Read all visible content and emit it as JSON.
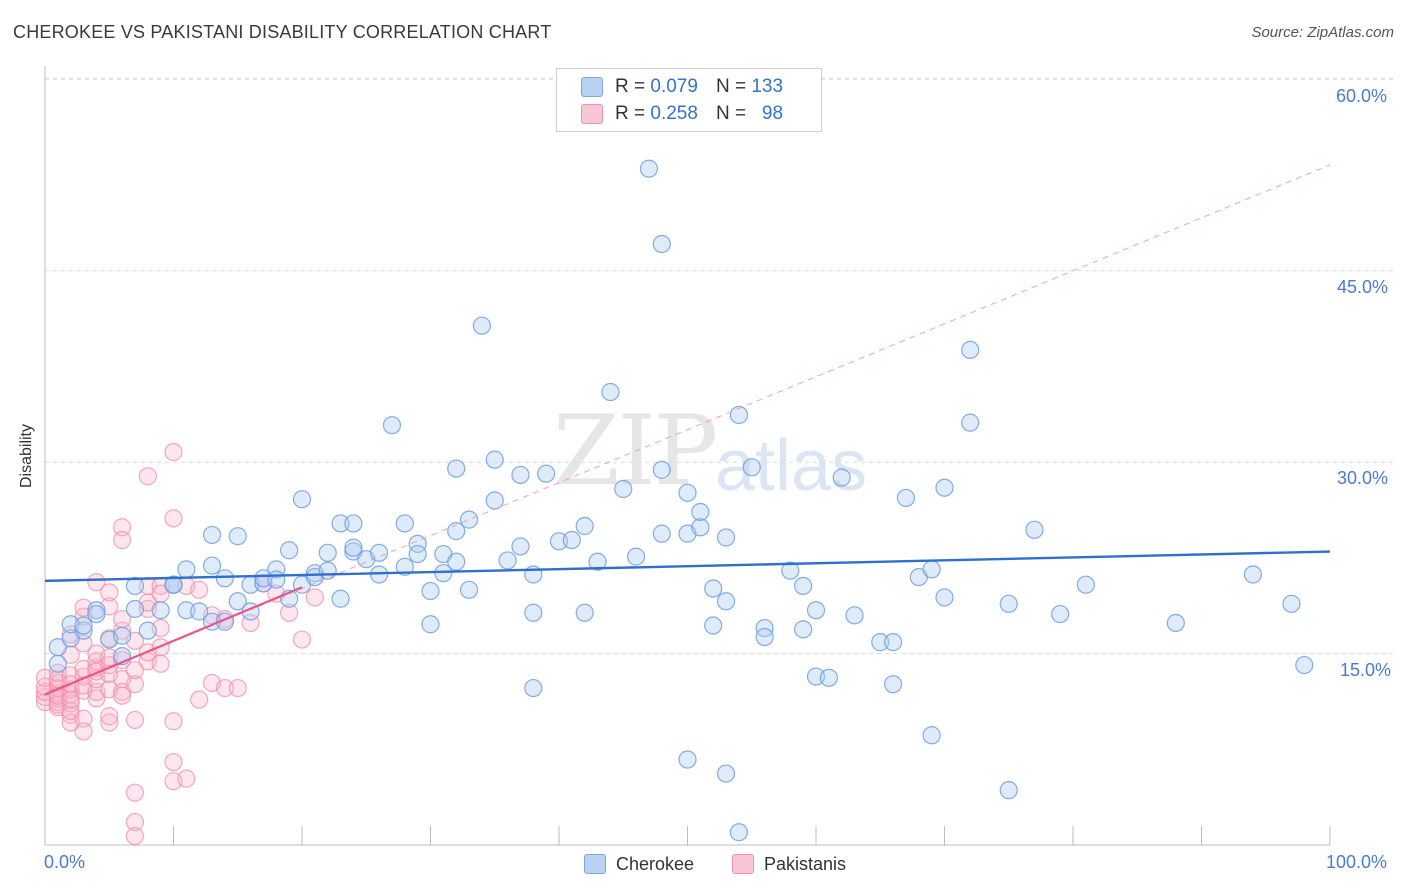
{
  "title": "CHEROKEE VS PAKISTANI DISABILITY CORRELATION CHART",
  "source": "Source: ZipAtlas.com",
  "watermark": {
    "zip": "ZIP",
    "atlas": "atlas"
  },
  "legend": {
    "row1": {
      "r_label": "R =",
      "r_value": "0.079",
      "n_label": "N =",
      "n_value": "133"
    },
    "row2": {
      "r_label": "R =",
      "r_value": "0.258",
      "n_label": "N =",
      "n_value": "98"
    }
  },
  "chart_data": {
    "type": "scatter",
    "title": "CHEROKEE VS PAKISTANI DISABILITY CORRELATION CHART",
    "xlabel": "",
    "ylabel": "Disability",
    "xlim": [
      0,
      100
    ],
    "ylim": [
      0,
      62
    ],
    "x_tick_labels": [
      "0.0%",
      "100.0%"
    ],
    "y_tick_labels": [
      "15.0%",
      "30.0%",
      "45.0%",
      "60.0%"
    ],
    "y_ticks": [
      15,
      30,
      45,
      60
    ],
    "colors": {
      "cherokee": "#6c9fe3",
      "pakistanis": "#f08cab",
      "cherokee_line": "#2f6fcf",
      "pakistanis_line": "#e8568a"
    },
    "series": [
      {
        "name": "Cherokee",
        "r": 0.079,
        "n": 133,
        "trend": {
          "x": [
            0,
            100
          ],
          "y": [
            20.7,
            23.0
          ]
        },
        "points": [
          [
            1,
            14.2
          ],
          [
            1,
            15.5
          ],
          [
            2,
            16.2
          ],
          [
            2,
            17.3
          ],
          [
            3,
            16.8
          ],
          [
            3,
            17.2
          ],
          [
            4,
            18.4
          ],
          [
            4,
            18.1
          ],
          [
            5,
            16.1
          ],
          [
            6,
            16.4
          ],
          [
            6,
            14.8
          ],
          [
            7,
            18.5
          ],
          [
            7,
            20.3
          ],
          [
            8,
            16.8
          ],
          [
            9,
            18.4
          ],
          [
            10,
            20.4
          ],
          [
            10,
            20.4
          ],
          [
            10,
            20.4
          ],
          [
            11,
            21.6
          ],
          [
            11,
            18.4
          ],
          [
            12,
            18.3
          ],
          [
            13,
            21.9
          ],
          [
            13,
            17.5
          ],
          [
            14,
            20.9
          ],
          [
            14,
            17.5
          ],
          [
            13,
            24.3
          ],
          [
            15,
            19.1
          ],
          [
            15,
            24.2
          ],
          [
            16,
            18.3
          ],
          [
            16,
            20.4
          ],
          [
            17,
            20.5
          ],
          [
            17,
            20.9
          ],
          [
            18,
            21.6
          ],
          [
            18,
            20.8
          ],
          [
            19,
            19.3
          ],
          [
            19,
            23.1
          ],
          [
            20,
            27.1
          ],
          [
            20,
            20.4
          ],
          [
            21,
            21.3
          ],
          [
            21,
            21.0
          ],
          [
            22,
            21.5
          ],
          [
            22,
            22.9
          ],
          [
            23,
            25.2
          ],
          [
            23,
            19.3
          ],
          [
            24,
            25.2
          ],
          [
            24,
            23.0
          ],
          [
            24,
            23.3
          ],
          [
            25,
            22.4
          ],
          [
            26,
            21.2
          ],
          [
            26,
            22.9
          ],
          [
            27,
            32.9
          ],
          [
            28,
            25.2
          ],
          [
            28,
            21.8
          ],
          [
            29,
            23.6
          ],
          [
            29,
            22.8
          ],
          [
            30,
            19.9
          ],
          [
            30,
            17.3
          ],
          [
            31,
            22.8
          ],
          [
            31,
            21.3
          ],
          [
            32,
            22.2
          ],
          [
            32,
            29.5
          ],
          [
            32,
            24.6
          ],
          [
            33,
            25.5
          ],
          [
            33,
            20.0
          ],
          [
            34,
            40.7
          ],
          [
            35,
            30.2
          ],
          [
            35,
            27.0
          ],
          [
            36,
            22.3
          ],
          [
            37,
            29.0
          ],
          [
            37,
            23.4
          ],
          [
            38,
            18.2
          ],
          [
            38,
            12.3
          ],
          [
            38,
            21.2
          ],
          [
            39,
            29.1
          ],
          [
            40,
            23.8
          ],
          [
            41,
            23.9
          ],
          [
            42,
            25.0
          ],
          [
            42,
            18.2
          ],
          [
            43,
            22.2
          ],
          [
            44,
            35.5
          ],
          [
            45,
            27.9
          ],
          [
            46,
            22.6
          ],
          [
            47,
            53.0
          ],
          [
            48,
            29.4
          ],
          [
            48,
            24.4
          ],
          [
            48,
            47.1
          ],
          [
            50,
            24.4
          ],
          [
            50,
            6.7
          ],
          [
            50,
            27.6
          ],
          [
            51,
            24.9
          ],
          [
            51,
            26.1
          ],
          [
            52,
            20.1
          ],
          [
            52,
            17.2
          ],
          [
            53,
            24.1
          ],
          [
            53,
            5.6
          ],
          [
            53,
            19.1
          ],
          [
            54,
            1.0
          ],
          [
            54,
            33.7
          ],
          [
            55,
            29.6
          ],
          [
            56,
            17.0
          ],
          [
            56,
            16.3
          ],
          [
            58,
            21.5
          ],
          [
            59,
            20.3
          ],
          [
            59,
            16.9
          ],
          [
            60,
            18.4
          ],
          [
            60,
            13.2
          ],
          [
            61,
            13.1
          ],
          [
            62,
            28.8
          ],
          [
            63,
            18.0
          ],
          [
            65,
            15.9
          ],
          [
            66,
            12.6
          ],
          [
            66,
            15.9
          ],
          [
            67,
            27.2
          ],
          [
            68,
            21.0
          ],
          [
            69,
            21.6
          ],
          [
            69,
            8.6
          ],
          [
            70,
            28.0
          ],
          [
            70,
            19.4
          ],
          [
            72,
            33.1
          ],
          [
            72,
            38.8
          ],
          [
            75,
            4.3
          ],
          [
            75,
            18.9
          ],
          [
            77,
            24.7
          ],
          [
            79,
            18.1
          ],
          [
            81,
            20.4
          ],
          [
            88,
            17.4
          ],
          [
            94,
            21.2
          ],
          [
            97,
            18.9
          ],
          [
            98,
            14.1
          ]
        ]
      },
      {
        "name": "Pakistanis",
        "r": 0.258,
        "n": 98,
        "trend": {
          "x": [
            0,
            20
          ],
          "y": [
            11.8,
            20.2
          ]
        },
        "trend_ext": {
          "x": [
            0,
            100
          ],
          "y": [
            11.8,
            53.3
          ]
        },
        "points": [
          [
            0,
            11.2
          ],
          [
            0,
            11.6
          ],
          [
            0,
            12.0
          ],
          [
            0,
            12.4
          ],
          [
            0,
            13.1
          ],
          [
            1,
            10.8
          ],
          [
            1,
            11.2
          ],
          [
            1,
            11.5
          ],
          [
            1,
            11.9
          ],
          [
            1,
            12.3
          ],
          [
            1,
            12.7
          ],
          [
            1,
            13.0
          ],
          [
            1,
            13.5
          ],
          [
            1,
            11.0
          ],
          [
            1,
            11.7
          ],
          [
            2,
            10.2
          ],
          [
            2,
            11.1
          ],
          [
            2,
            11.8
          ],
          [
            2,
            12.2
          ],
          [
            2,
            13.3
          ],
          [
            2,
            9.6
          ],
          [
            2,
            10.5
          ],
          [
            2,
            11.4
          ],
          [
            2,
            12.6
          ],
          [
            2,
            14.9
          ],
          [
            2,
            16.5
          ],
          [
            3,
            9.9
          ],
          [
            3,
            12.1
          ],
          [
            3,
            13.2
          ],
          [
            3,
            13.8
          ],
          [
            3,
            8.9
          ],
          [
            3,
            15.8
          ],
          [
            3,
            17.9
          ],
          [
            3,
            18.6
          ],
          [
            3,
            12.5
          ],
          [
            4,
            11.5
          ],
          [
            4,
            12.0
          ],
          [
            4,
            13.0
          ],
          [
            4,
            13.9
          ],
          [
            4,
            14.4
          ],
          [
            4,
            15.0
          ],
          [
            4,
            20.6
          ],
          [
            4,
            13.6
          ],
          [
            5,
            12.2
          ],
          [
            5,
            13.4
          ],
          [
            5,
            14.1
          ],
          [
            5,
            14.7
          ],
          [
            5,
            16.2
          ],
          [
            5,
            18.7
          ],
          [
            5,
            19.8
          ],
          [
            5,
            9.6
          ],
          [
            5,
            10.1
          ],
          [
            6,
            13.0
          ],
          [
            6,
            14.5
          ],
          [
            6,
            16.8
          ],
          [
            6,
            17.7
          ],
          [
            6,
            12.0
          ],
          [
            6,
            11.7
          ],
          [
            6,
            24.9
          ],
          [
            6,
            23.9
          ],
          [
            7,
            12.6
          ],
          [
            7,
            13.7
          ],
          [
            7,
            16.0
          ],
          [
            7,
            9.8
          ],
          [
            7,
            4.1
          ],
          [
            7,
            1.8
          ],
          [
            7,
            0.7
          ],
          [
            8,
            14.4
          ],
          [
            8,
            15.1
          ],
          [
            8,
            18.5
          ],
          [
            8,
            20.3
          ],
          [
            8,
            19.0
          ],
          [
            8,
            28.9
          ],
          [
            9,
            15.5
          ],
          [
            9,
            17.0
          ],
          [
            9,
            20.3
          ],
          [
            9,
            19.7
          ],
          [
            9,
            14.2
          ],
          [
            10,
            9.7
          ],
          [
            10,
            6.5
          ],
          [
            10,
            5.0
          ],
          [
            10,
            30.8
          ],
          [
            10,
            25.6
          ],
          [
            11,
            5.2
          ],
          [
            11,
            20.3
          ],
          [
            12,
            11.4
          ],
          [
            12,
            20.0
          ],
          [
            13,
            18.0
          ],
          [
            13,
            12.7
          ],
          [
            14,
            17.7
          ],
          [
            14,
            12.3
          ],
          [
            15,
            12.3
          ],
          [
            16,
            17.4
          ],
          [
            17,
            20.5
          ],
          [
            18,
            19.7
          ],
          [
            19,
            18.2
          ],
          [
            20,
            16.1
          ],
          [
            21,
            19.4
          ]
        ]
      }
    ]
  },
  "bottom_legend": {
    "cherokee": "Cherokee",
    "pakistanis": "Pakistanis"
  }
}
